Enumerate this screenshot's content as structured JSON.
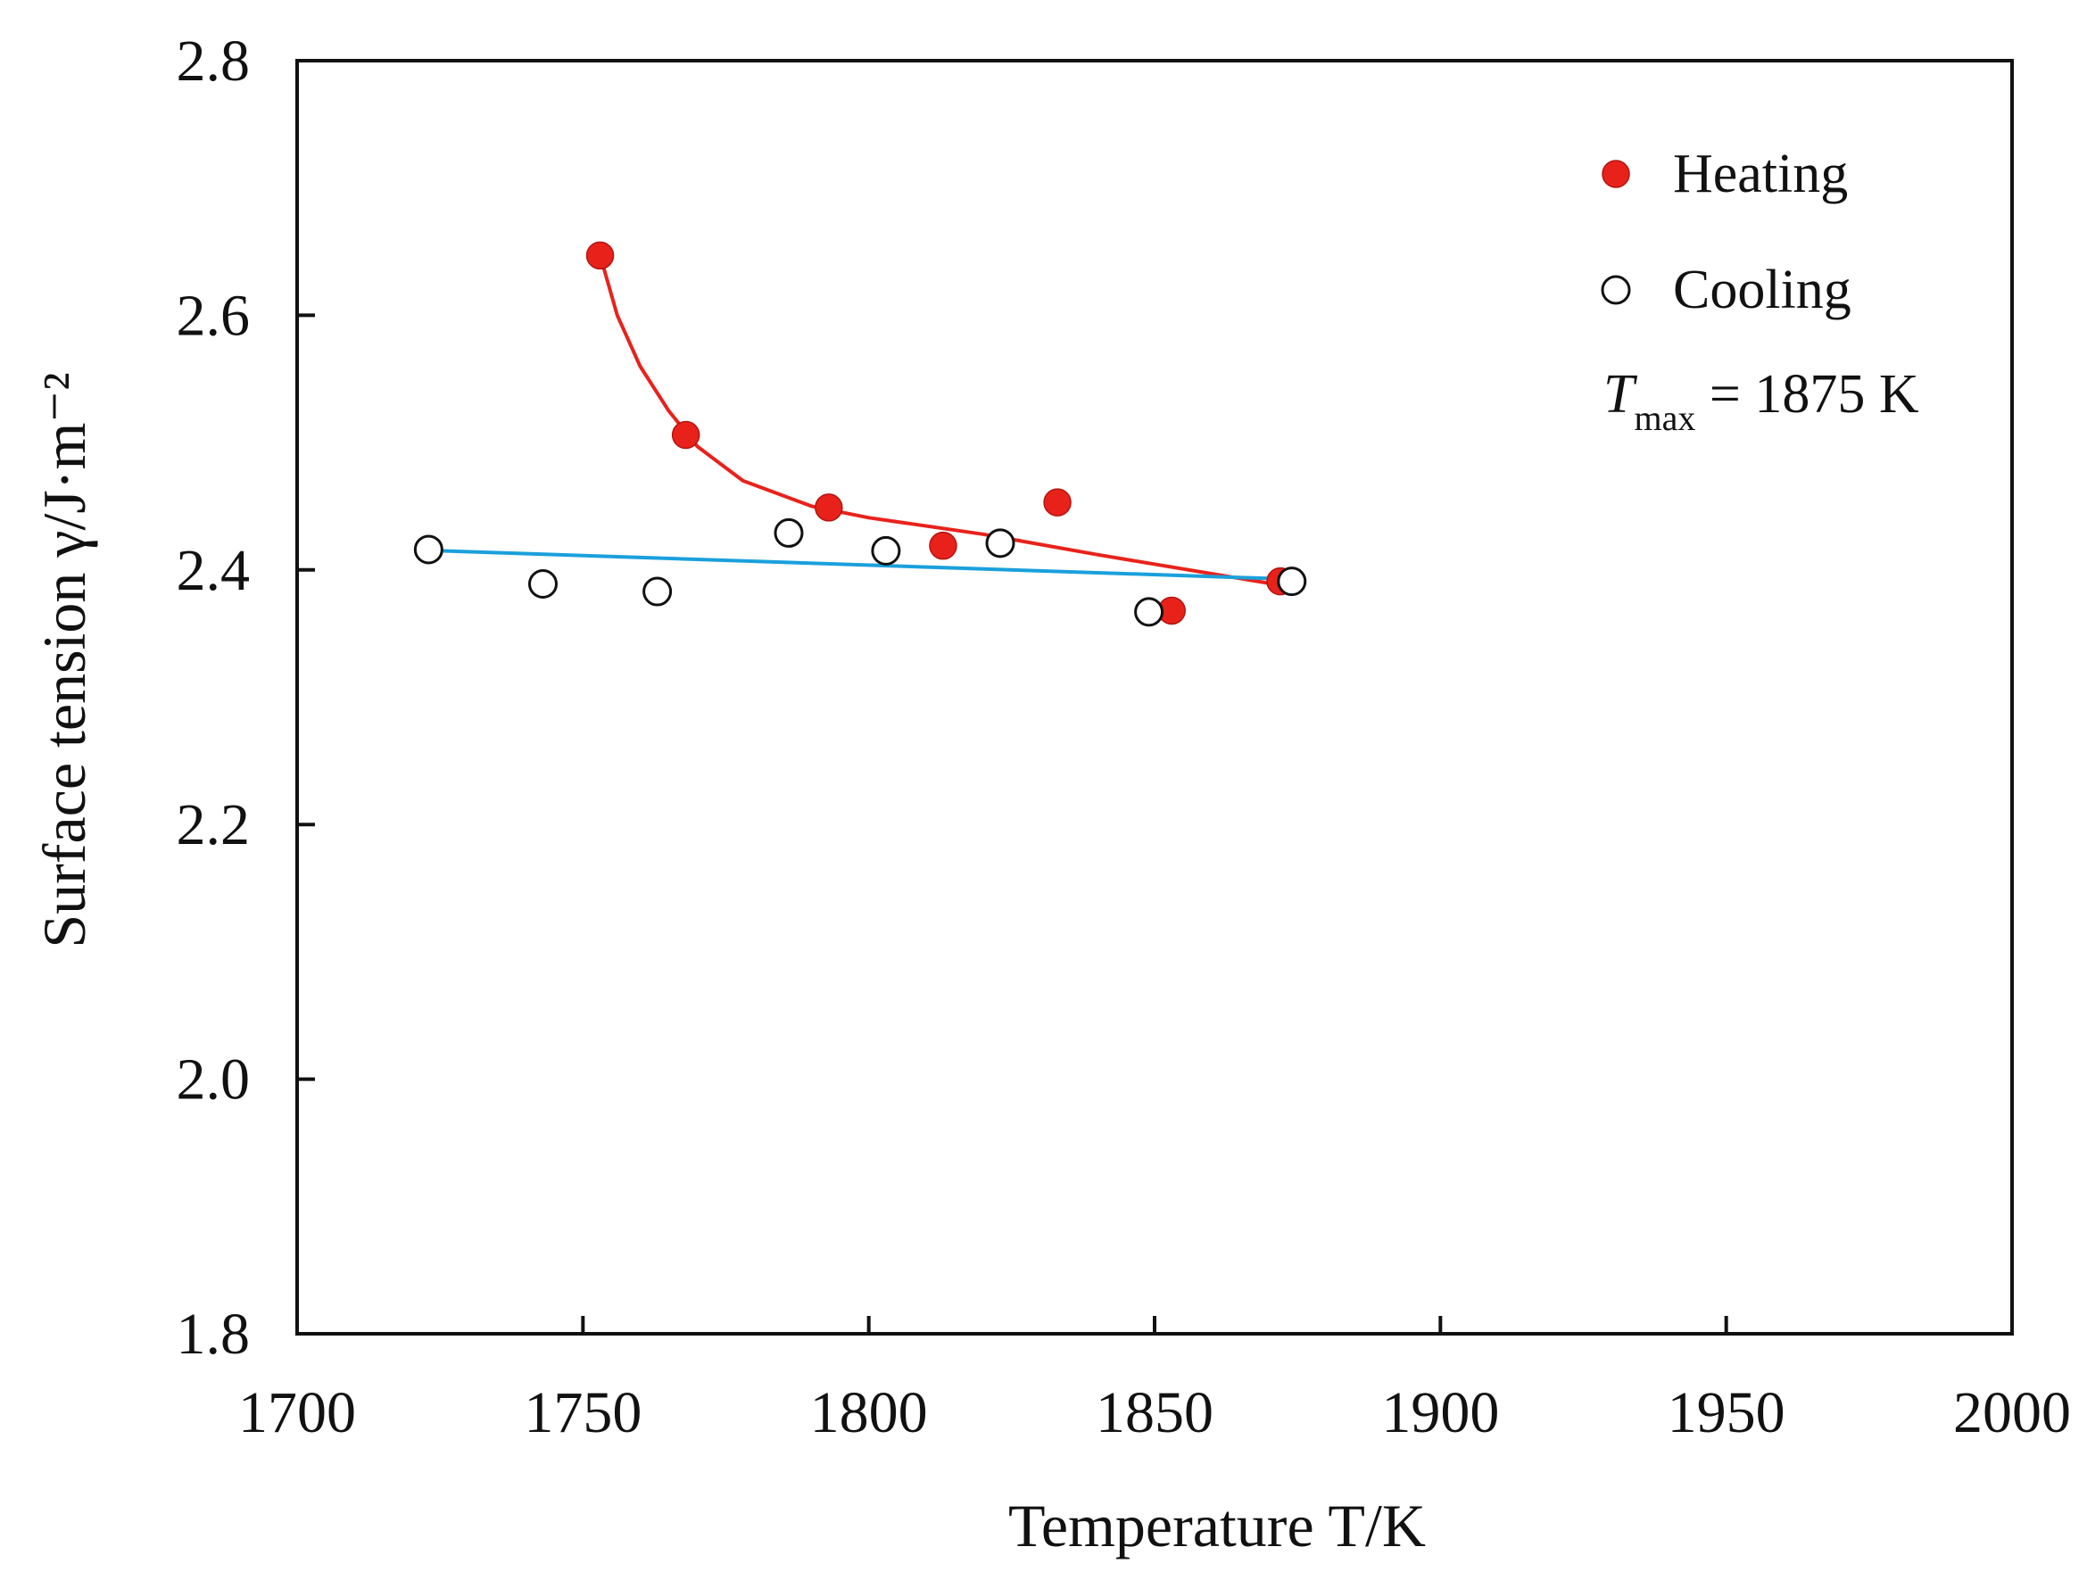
{
  "chart_data": {
    "type": "scatter",
    "xlabel": "Temperature T/K",
    "ylabel": "Surface tension γ/J·m⁻²",
    "xlim": [
      1700,
      2000
    ],
    "ylim": [
      1.8,
      2.8
    ],
    "xticks": [
      "1700",
      "1750",
      "1800",
      "1850",
      "1900",
      "1950",
      "2000"
    ],
    "yticks": [
      "1.8",
      "2.0",
      "2.2",
      "2.4",
      "2.6",
      "2.8"
    ],
    "grid": false,
    "legend_position": "top-right",
    "series": [
      {
        "name": "Heating",
        "marker": "filled-circle",
        "color": "#e8221b",
        "points": [
          {
            "x": 1753,
            "y": 2.647
          },
          {
            "x": 1768,
            "y": 2.506
          },
          {
            "x": 1793,
            "y": 2.449
          },
          {
            "x": 1813,
            "y": 2.419
          },
          {
            "x": 1833,
            "y": 2.453
          },
          {
            "x": 1853,
            "y": 2.368
          },
          {
            "x": 1872,
            "y": 2.391
          }
        ],
        "fit": {
          "color": "#e8221b",
          "points": [
            [
              1753,
              2.647
            ],
            [
              1756,
              2.6
            ],
            [
              1760,
              2.56
            ],
            [
              1765,
              2.525
            ],
            [
              1770,
              2.497
            ],
            [
              1778,
              2.47
            ],
            [
              1790,
              2.45
            ],
            [
              1800,
              2.441
            ],
            [
              1820,
              2.428
            ],
            [
              1840,
              2.412
            ],
            [
              1872,
              2.388
            ]
          ]
        }
      },
      {
        "name": "Cooling",
        "marker": "open-circle",
        "color": "#111111",
        "points": [
          {
            "x": 1723,
            "y": 2.416
          },
          {
            "x": 1743,
            "y": 2.389
          },
          {
            "x": 1763,
            "y": 2.383
          },
          {
            "x": 1786,
            "y": 2.429
          },
          {
            "x": 1803,
            "y": 2.415
          },
          {
            "x": 1823,
            "y": 2.421
          },
          {
            "x": 1849,
            "y": 2.367
          },
          {
            "x": 1874,
            "y": 2.391
          }
        ],
        "fit": {
          "color": "#1aa0dc",
          "points": [
            [
              1725,
              2.415
            ],
            [
              1872,
              2.393
            ]
          ]
        }
      }
    ],
    "annotation": {
      "T": "T",
      "sub": "max",
      "rest": " = 1875 K"
    }
  }
}
